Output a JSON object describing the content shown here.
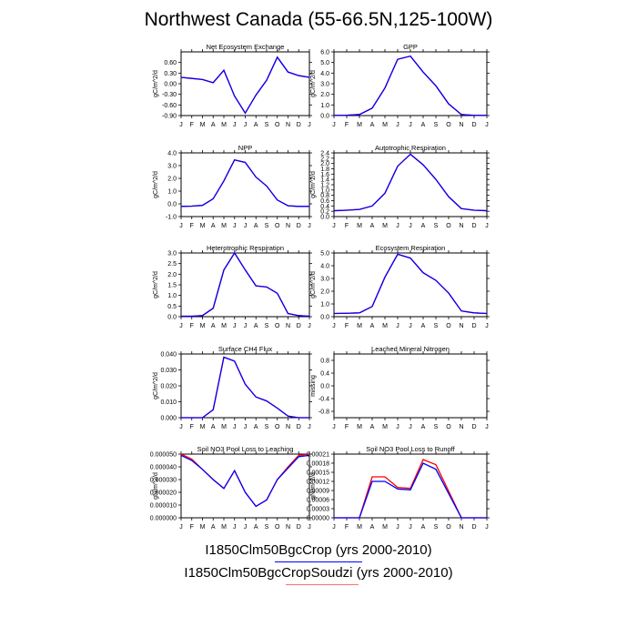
{
  "title": "Northwest Canada (55-66.5N,125-100W)",
  "months": [
    "J",
    "F",
    "M",
    "A",
    "M",
    "J",
    "J",
    "A",
    "S",
    "O",
    "N",
    "D",
    "J"
  ],
  "colors": {
    "series1": "#0000ff",
    "series2": "#ff0000"
  },
  "legend": [
    {
      "label": "I1850Clm50BgcCrop (yrs 2000-2010)",
      "color": "#0000ff"
    },
    {
      "label": "I1850Clm50BgcCropSoudzi (yrs 2000-2010)",
      "color": "#ff0000"
    }
  ],
  "chart_data": [
    {
      "type": "line",
      "title": "Net Ecosystem Exchange",
      "ylabel": "gC/m^2/d",
      "ylim": [
        -0.9,
        0.9
      ],
      "yticks": [
        "-0.90",
        "-0.60",
        "-0.30",
        "0.00",
        "0.30",
        "0.60"
      ],
      "ytick_values": [
        -0.9,
        -0.6,
        -0.3,
        0,
        0.3,
        0.6
      ],
      "series": [
        {
          "values": [
            0.18,
            0.15,
            0.12,
            0.03,
            0.38,
            -0.35,
            -0.83,
            -0.32,
            0.1,
            0.75,
            0.33,
            0.23,
            0.18
          ]
        },
        {
          "values": [
            0.18,
            0.15,
            0.12,
            0.03,
            0.38,
            -0.35,
            -0.83,
            -0.32,
            0.1,
            0.75,
            0.33,
            0.23,
            0.18
          ]
        }
      ]
    },
    {
      "type": "line",
      "title": "GPP",
      "ylabel": "gC/m^2/d",
      "ylim": [
        0,
        6
      ],
      "yticks": [
        "0.0",
        "1.0",
        "2.0",
        "3.0",
        "4.0",
        "5.0",
        "6.0"
      ],
      "ytick_values": [
        0,
        1,
        2,
        3,
        4,
        5,
        6
      ],
      "series": [
        {
          "values": [
            0.02,
            0.03,
            0.1,
            0.7,
            2.6,
            5.3,
            5.6,
            4.1,
            2.8,
            1.1,
            0.1,
            0.02,
            0.02
          ]
        },
        {
          "values": [
            0.02,
            0.03,
            0.1,
            0.7,
            2.6,
            5.3,
            5.6,
            4.1,
            2.8,
            1.1,
            0.1,
            0.02,
            0.02
          ]
        }
      ]
    },
    {
      "type": "line",
      "title": "NPP",
      "ylabel": "gC/m^2/d",
      "ylim": [
        -1,
        4
      ],
      "yticks": [
        "-1.0",
        "0.0",
        "1.0",
        "2.0",
        "3.0",
        "4.0"
      ],
      "ytick_values": [
        -1,
        0,
        1,
        2,
        3,
        4
      ],
      "series": [
        {
          "values": [
            -0.2,
            -0.18,
            -0.12,
            0.4,
            1.8,
            3.45,
            3.25,
            2.1,
            1.4,
            0.3,
            -0.15,
            -0.2,
            -0.2
          ]
        },
        {
          "values": [
            -0.2,
            -0.18,
            -0.12,
            0.4,
            1.8,
            3.45,
            3.25,
            2.1,
            1.4,
            0.3,
            -0.15,
            -0.2,
            -0.2
          ]
        }
      ]
    },
    {
      "type": "line",
      "title": "Autotrophic Respiration",
      "ylabel": "gC/m^2/d",
      "ylim": [
        0,
        2.4
      ],
      "yticks": [
        "0.0",
        "0.2",
        "0.4",
        "0.6",
        "0.8",
        "1.0",
        "1.2",
        "1.4",
        "1.6",
        "1.8",
        "2.0",
        "2.2",
        "2.4"
      ],
      "ytick_values": [
        0,
        0.2,
        0.4,
        0.6,
        0.8,
        1,
        1.2,
        1.4,
        1.6,
        1.8,
        2,
        2.2,
        2.4
      ],
      "series": [
        {
          "values": [
            0.22,
            0.24,
            0.27,
            0.4,
            0.88,
            1.9,
            2.35,
            1.95,
            1.4,
            0.75,
            0.3,
            0.24,
            0.22
          ]
        },
        {
          "values": [
            0.22,
            0.24,
            0.27,
            0.4,
            0.88,
            1.9,
            2.35,
            1.95,
            1.4,
            0.75,
            0.3,
            0.24,
            0.22
          ]
        }
      ]
    },
    {
      "type": "line",
      "title": "Heterotrophic Respiration",
      "ylabel": "gC/m^2/d",
      "ylim": [
        0,
        3
      ],
      "yticks": [
        "0.0",
        "0.5",
        "1.0",
        "1.5",
        "2.0",
        "2.5",
        "3.0"
      ],
      "ytick_values": [
        0,
        0.5,
        1,
        1.5,
        2,
        2.5,
        3
      ],
      "series": [
        {
          "values": [
            0.02,
            0.02,
            0.05,
            0.4,
            2.2,
            3.0,
            2.2,
            1.45,
            1.4,
            1.1,
            0.15,
            0.05,
            0.02
          ]
        },
        {
          "values": [
            0.02,
            0.02,
            0.05,
            0.4,
            2.2,
            3.0,
            2.2,
            1.45,
            1.4,
            1.1,
            0.15,
            0.05,
            0.02
          ]
        }
      ]
    },
    {
      "type": "line",
      "title": "Ecosystem Respiration",
      "ylabel": "gC/m^2/d",
      "ylim": [
        0,
        5
      ],
      "yticks": [
        "0.0",
        "1.0",
        "2.0",
        "3.0",
        "4.0",
        "5.0"
      ],
      "ytick_values": [
        0,
        1,
        2,
        3,
        4,
        5
      ],
      "series": [
        {
          "values": [
            0.25,
            0.27,
            0.3,
            0.8,
            3.1,
            4.9,
            4.6,
            3.45,
            2.85,
            1.85,
            0.45,
            0.3,
            0.25
          ]
        },
        {
          "values": [
            0.25,
            0.27,
            0.3,
            0.8,
            3.1,
            4.9,
            4.6,
            3.45,
            2.85,
            1.85,
            0.45,
            0.3,
            0.25
          ]
        }
      ]
    },
    {
      "type": "line",
      "title": "Surface CH4 Flux",
      "ylabel": "gC/m^2/d",
      "ylim": [
        0,
        0.04
      ],
      "yticks": [
        "0.000",
        "0.010",
        "0.020",
        "0.030",
        "0.040"
      ],
      "ytick_values": [
        0,
        0.01,
        0.02,
        0.03,
        0.04
      ],
      "series": [
        {
          "values": [
            0.0,
            0.0,
            0.0,
            0.005,
            0.038,
            0.0355,
            0.021,
            0.013,
            0.0105,
            0.006,
            0.001,
            0.0,
            0.0
          ]
        },
        {
          "values": [
            0.0,
            0.0,
            0.0,
            0.005,
            0.038,
            0.0355,
            0.021,
            0.013,
            0.0105,
            0.006,
            0.001,
            0.0,
            0.0
          ]
        }
      ]
    },
    {
      "type": "line",
      "title": "Leached Mineral Nitrogen",
      "ylabel": "missing",
      "ylim": [
        -1,
        1
      ],
      "yticks": [
        "-0.8",
        "-0.4",
        "0.0",
        "0.4",
        "0.8"
      ],
      "ytick_values": [
        -0.8,
        -0.4,
        0,
        0.4,
        0.8
      ],
      "series": []
    },
    {
      "type": "line",
      "title": "Soil NO3 Pool Loss to Leaching",
      "ylabel": "gN/m^2/d",
      "ylim": [
        0,
        5e-05
      ],
      "yticks": [
        "0.000000",
        "0.000010",
        "0.000020",
        "0.000030",
        "0.000040",
        "0.000050"
      ],
      "ytick_values": [
        0,
        1e-05,
        2e-05,
        3e-05,
        4e-05,
        5e-05
      ],
      "series": [
        {
          "values": [
            4.9e-05,
            4.5e-05,
            3.8e-05,
            3e-05,
            2.3e-05,
            3.7e-05,
            2e-05,
            9e-06,
            1.4e-05,
            3e-05,
            3.9e-05,
            4.8e-05,
            4.9e-05
          ]
        },
        {
          "values": [
            5e-05,
            4.6e-05,
            3.8e-05,
            3e-05,
            2.3e-05,
            3.7e-05,
            2e-05,
            9e-06,
            1.4e-05,
            3e-05,
            4e-05,
            4.9e-05,
            5e-05
          ]
        }
      ]
    },
    {
      "type": "line",
      "title": "Soil NO3 Pool Loss to Runoff",
      "ylabel": "gN/m^2/d",
      "ylim": [
        0,
        0.00021
      ],
      "yticks": [
        "0.00000",
        "0.00003",
        "0.00006",
        "0.00009",
        "0.00012",
        "0.00015",
        "0.00018",
        "0.00021"
      ],
      "ytick_values": [
        0,
        3e-05,
        6e-05,
        9e-05,
        0.00012,
        0.00015,
        0.00018,
        0.00021
      ],
      "series": [
        {
          "values": [
            0.0,
            0.0,
            0.0,
            0.00012,
            0.00012,
            9.5e-05,
            9.2e-05,
            0.00018,
            0.00016,
            8e-05,
            0.0,
            0.0,
            0.0
          ]
        },
        {
          "values": [
            0.0,
            0.0,
            0.0,
            0.000135,
            0.000135,
            0.0001,
            9.7e-05,
            0.000192,
            0.000175,
            8.8e-05,
            0.0,
            0.0,
            0.0
          ]
        }
      ]
    }
  ]
}
